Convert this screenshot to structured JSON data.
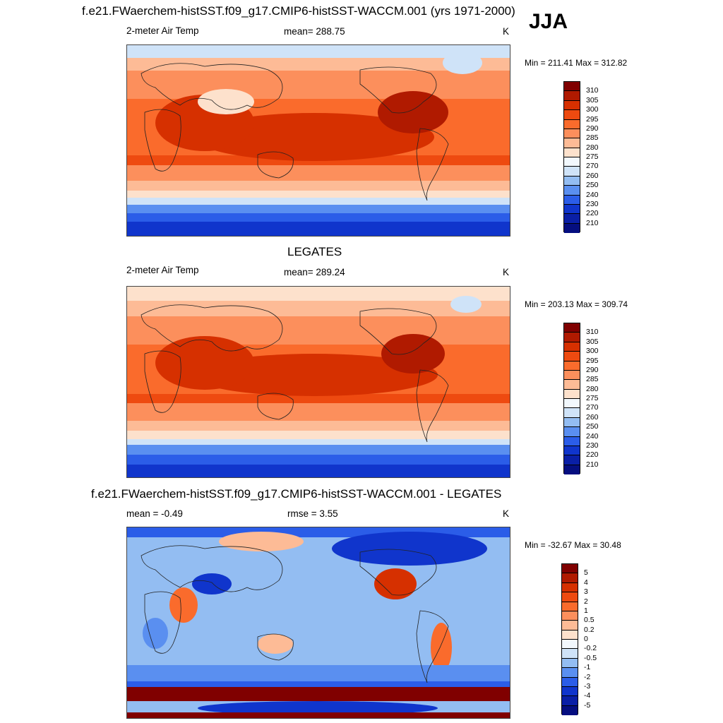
{
  "header": {
    "title": "f.e21.FWaerchem-histSST.f09_g17.CMIP6-histSST-WACCM.001 (yrs 1971-2000)",
    "season": "JJA"
  },
  "chart_data": [
    {
      "type": "heatmap",
      "title": "",
      "left_label": "2-meter Air Temp",
      "center_label": "mean= 288.75",
      "right_label": "K",
      "minmax": "Min = 211.41 Max = 312.82",
      "mean": 288.75,
      "min": 211.41,
      "max": 312.82,
      "colorbar": {
        "labels": [
          "310",
          "305",
          "300",
          "295",
          "290",
          "285",
          "280",
          "275",
          "270",
          "260",
          "250",
          "240",
          "230",
          "220",
          "210"
        ],
        "colors": [
          "#800000",
          "#b01a00",
          "#d63000",
          "#ee4a10",
          "#fa6b2c",
          "#fc8f5c",
          "#fdbb96",
          "#fde1cc",
          "#f2f8fd",
          "#cfe3f8",
          "#93bdf2",
          "#5a8ff0",
          "#2b5de8",
          "#1035cc",
          "#0a1fa6",
          "#050e80"
        ]
      }
    },
    {
      "type": "heatmap",
      "title": "LEGATES",
      "left_label": "2-meter Air Temp",
      "center_label": "mean= 289.24",
      "right_label": "K",
      "minmax": "Min = 203.13 Max = 309.74",
      "mean": 289.24,
      "min": 203.13,
      "max": 309.74,
      "colorbar": {
        "labels": [
          "310",
          "305",
          "300",
          "295",
          "290",
          "285",
          "280",
          "275",
          "270",
          "260",
          "250",
          "240",
          "230",
          "220",
          "210"
        ],
        "colors": [
          "#800000",
          "#b01a00",
          "#d63000",
          "#ee4a10",
          "#fa6b2c",
          "#fc8f5c",
          "#fdbb96",
          "#fde1cc",
          "#f2f8fd",
          "#cfe3f8",
          "#93bdf2",
          "#5a8ff0",
          "#2b5de8",
          "#1035cc",
          "#0a1fa6",
          "#050e80"
        ]
      }
    },
    {
      "type": "heatmap",
      "title": "f.e21.FWaerchem-histSST.f09_g17.CMIP6-histSST-WACCM.001 - LEGATES",
      "left_label": "mean =  -0.49",
      "center_label": "rmse =   3.55",
      "right_label": "K",
      "minmax": "Min = -32.67 Max =  30.48",
      "mean": -0.49,
      "rmse": 3.55,
      "min": -32.67,
      "max": 30.48,
      "colorbar": {
        "labels": [
          "5",
          "4",
          "3",
          "2",
          "1",
          "0.5",
          "0.2",
          "0",
          "-0.2",
          "-0.5",
          "-1",
          "-2",
          "-3",
          "-4",
          "-5"
        ],
        "colors": [
          "#800000",
          "#b01a00",
          "#d63000",
          "#ee4a10",
          "#fa6b2c",
          "#fc8f5c",
          "#fdbb96",
          "#fde1cc",
          "#f2f8fd",
          "#cfe3f8",
          "#93bdf2",
          "#5a8ff0",
          "#2b5de8",
          "#1035cc",
          "#0a1fa6",
          "#050e80"
        ]
      }
    }
  ]
}
